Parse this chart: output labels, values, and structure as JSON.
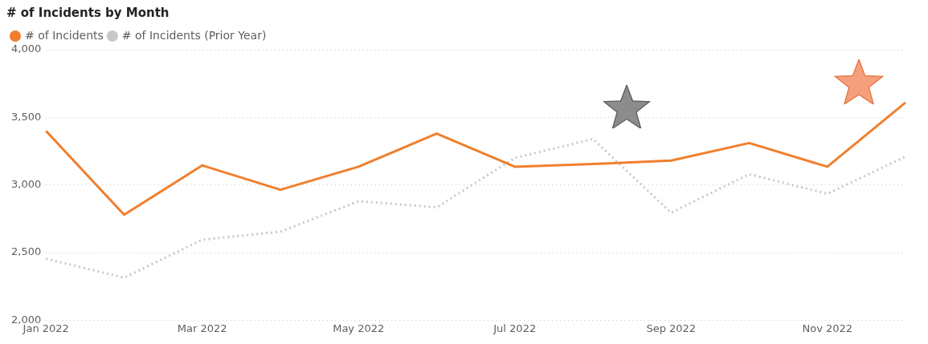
{
  "chart_data": {
    "type": "line",
    "title": "# of Incidents by Month",
    "categories": [
      "Jan 2022",
      null,
      "Mar 2022",
      null,
      "May 2022",
      null,
      "Jul 2022",
      null,
      "Sep 2022",
      null,
      "Nov 2022",
      null
    ],
    "series": [
      {
        "name": "# of Incidents",
        "color": "#f07f2c",
        "line_style": "solid",
        "values": [
          3400,
          2780,
          3145,
          2965,
          3135,
          3380,
          3135,
          3155,
          3180,
          3310,
          3135,
          3610
        ]
      },
      {
        "name": "# of Incidents (Prior Year)",
        "color": "#c8c8c8",
        "line_style": "dotted",
        "values": [
          2455,
          2315,
          2595,
          2655,
          2880,
          2835,
          3200,
          3340,
          2795,
          3080,
          2935,
          3210
        ]
      }
    ],
    "ylim": [
      2000,
      4000
    ],
    "yticks": [
      {
        "value": 2000,
        "label": "2,000"
      },
      {
        "value": 2500,
        "label": "2,500"
      },
      {
        "value": 3000,
        "label": "3,000"
      },
      {
        "value": 3500,
        "label": "3,500"
      },
      {
        "value": 4000,
        "label": "4,000"
      }
    ],
    "grid": "y",
    "legend": "top left",
    "marker": "none"
  }
}
